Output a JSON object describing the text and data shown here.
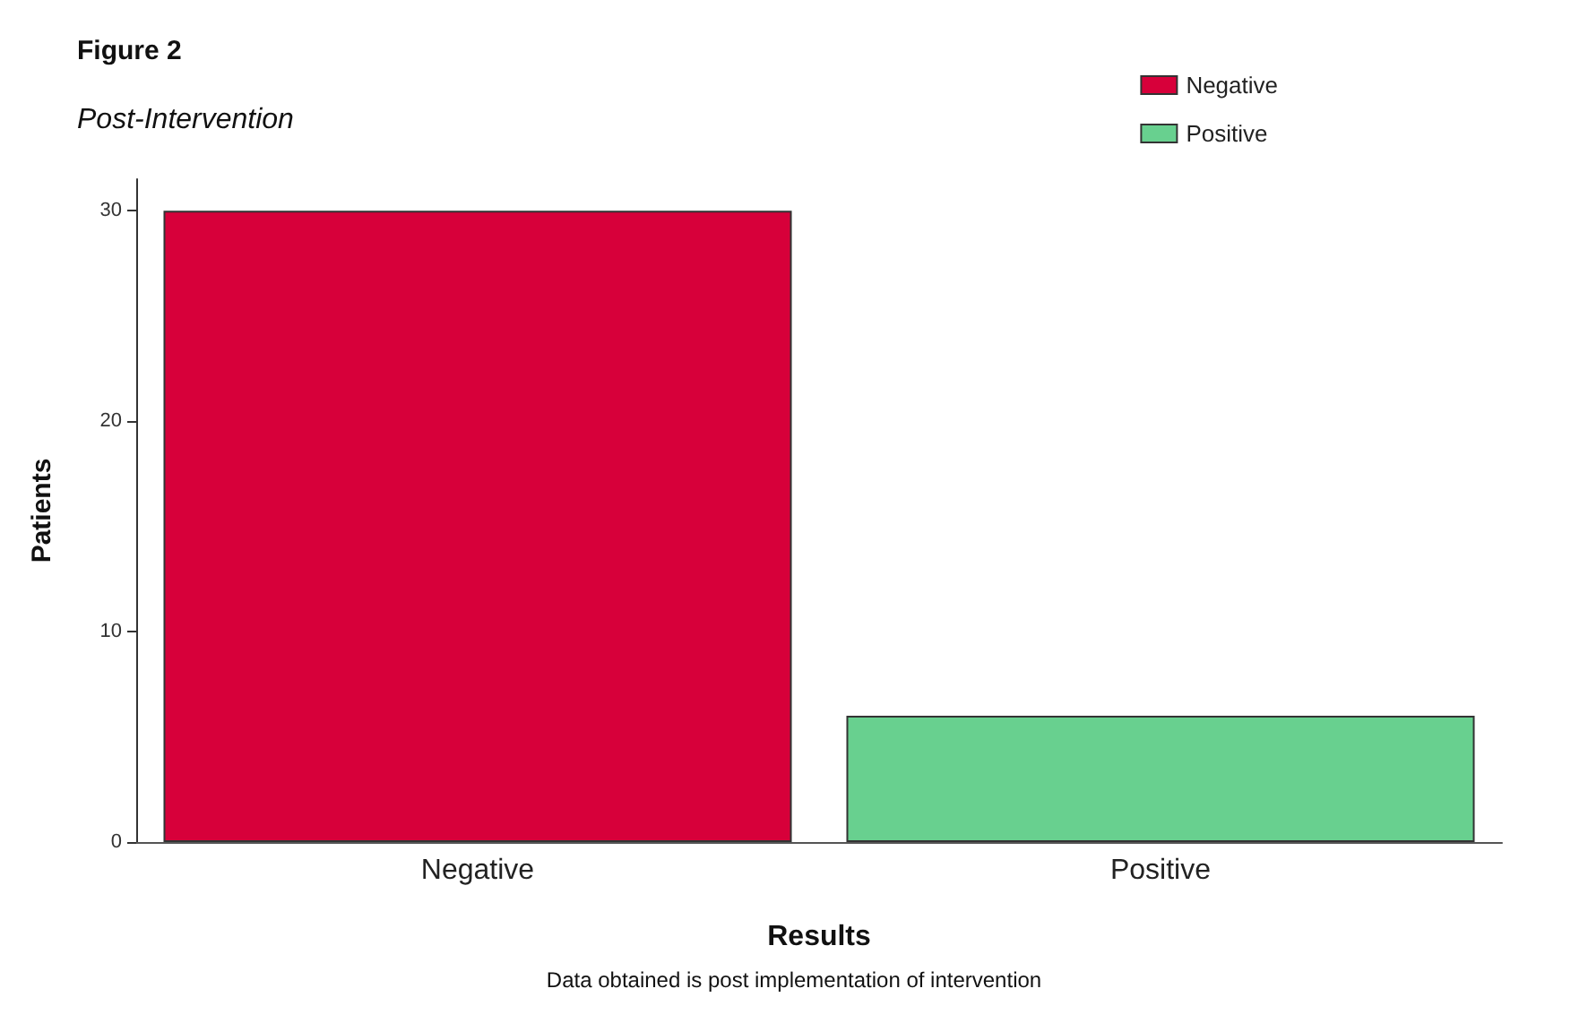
{
  "chart_data": {
    "type": "bar",
    "title": "Figure 2",
    "subtitle": "Post-Intervention",
    "xlabel": "Results",
    "ylabel": "Patients",
    "annotations": [
      "Data obtained is post implementation of intervention"
    ],
    "categories": [
      "Negative",
      "Positive"
    ],
    "series": [
      {
        "name": "Negative",
        "color": "#d7003a",
        "values": [
          30,
          null
        ]
      },
      {
        "name": "Positive",
        "color": "#68d08f",
        "values": [
          null,
          6
        ]
      }
    ],
    "ylim": [
      0,
      31.5
    ],
    "yticks": [
      0,
      10,
      20,
      30
    ],
    "grid": false,
    "legend": "top right"
  }
}
